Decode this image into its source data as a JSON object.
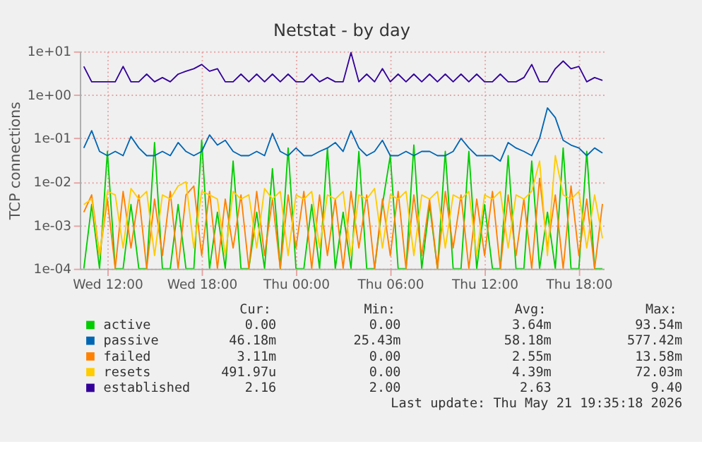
{
  "chart_data": {
    "type": "line",
    "title": "Netstat - by day",
    "ylabel": "TCP connections",
    "log": true,
    "grid": true,
    "legend": "bottom left",
    "line_style": "solid",
    "marker": "none",
    "xlim": [
      "2026-05-20T10:15",
      "2026-05-21T19:35"
    ],
    "xticks": [
      {
        "value": "2026-05-20T12:00",
        "label": "Wed 12:00"
      },
      {
        "value": "2026-05-20T18:00",
        "label": "Wed 18:00"
      },
      {
        "value": "2026-05-21T00:00",
        "label": "Thu 00:00"
      },
      {
        "value": "2026-05-21T06:00",
        "label": "Thu 06:00"
      },
      {
        "value": "2026-05-21T12:00",
        "label": "Thu 12:00"
      },
      {
        "value": "2026-05-21T18:00",
        "label": "Thu 18:00"
      }
    ],
    "ylim": [
      0.0001,
      10
    ],
    "yticks": [
      {
        "value": 0.0001,
        "label": "1e-04"
      },
      {
        "value": 0.001,
        "label": "1e-03"
      },
      {
        "value": 0.01,
        "label": "1e-02"
      },
      {
        "value": 0.1,
        "label": "1e-01"
      },
      {
        "value": 1,
        "label": "1e+00"
      },
      {
        "value": 10,
        "label": "1e+01"
      }
    ],
    "x": [
      "2026-05-20T10:30",
      "2026-05-20T11:00",
      "2026-05-20T11:30",
      "2026-05-20T12:00",
      "2026-05-20T12:30",
      "2026-05-20T13:00",
      "2026-05-20T13:30",
      "2026-05-20T14:00",
      "2026-05-20T14:30",
      "2026-05-20T15:00",
      "2026-05-20T15:30",
      "2026-05-20T16:00",
      "2026-05-20T16:30",
      "2026-05-20T17:00",
      "2026-05-20T17:30",
      "2026-05-20T18:00",
      "2026-05-20T18:30",
      "2026-05-20T19:00",
      "2026-05-20T19:30",
      "2026-05-20T20:00",
      "2026-05-20T20:30",
      "2026-05-20T21:00",
      "2026-05-20T21:30",
      "2026-05-20T22:00",
      "2026-05-20T22:30",
      "2026-05-20T23:00",
      "2026-05-20T23:30",
      "2026-05-21T00:00",
      "2026-05-21T00:30",
      "2026-05-21T01:00",
      "2026-05-21T01:30",
      "2026-05-21T02:00",
      "2026-05-21T02:30",
      "2026-05-21T03:00",
      "2026-05-21T03:30",
      "2026-05-21T04:00",
      "2026-05-21T04:30",
      "2026-05-21T05:00",
      "2026-05-21T05:30",
      "2026-05-21T06:00",
      "2026-05-21T06:30",
      "2026-05-21T07:00",
      "2026-05-21T07:30",
      "2026-05-21T08:00",
      "2026-05-21T08:30",
      "2026-05-21T09:00",
      "2026-05-21T09:30",
      "2026-05-21T10:00",
      "2026-05-21T10:30",
      "2026-05-21T11:00",
      "2026-05-21T11:30",
      "2026-05-21T12:00",
      "2026-05-21T12:30",
      "2026-05-21T13:00",
      "2026-05-21T13:30",
      "2026-05-21T14:00",
      "2026-05-21T14:30",
      "2026-05-21T15:00",
      "2026-05-21T15:30",
      "2026-05-21T16:00",
      "2026-05-21T16:30",
      "2026-05-21T17:00",
      "2026-05-21T17:30",
      "2026-05-21T18:00",
      "2026-05-21T18:30",
      "2026-05-21T19:00",
      "2026-05-21T19:30"
    ],
    "series": [
      {
        "name": "active",
        "color": "#00cc00",
        "values": [
          0.0001,
          0.003,
          0.0001,
          0.05,
          0.0001,
          0.0001,
          0.003,
          0.0001,
          0.0001,
          0.08,
          0.0001,
          0.0001,
          0.003,
          0.0001,
          0.0001,
          0.09,
          0.0001,
          0.002,
          0.0001,
          0.03,
          0.0001,
          0.0001,
          0.002,
          0.0001,
          0.02,
          0.0001,
          0.06,
          0.0001,
          0.0001,
          0.003,
          0.0001,
          0.06,
          0.0001,
          0.002,
          0.0001,
          0.05,
          0.0001,
          0.0001,
          0.003,
          0.04,
          0.0001,
          0.0001,
          0.07,
          0.0001,
          0.003,
          0.0001,
          0.05,
          0.0001,
          0.0001,
          0.05,
          0.0001,
          0.003,
          0.0001,
          0.0001,
          0.04,
          0.0001,
          0.0001,
          0.03,
          0.0001,
          0.002,
          0.0001,
          0.06,
          0.0001,
          0.0001,
          0.05,
          0.0001,
          0.0001
        ]
      },
      {
        "name": "passive",
        "color": "#0066b3",
        "values": [
          0.06,
          0.15,
          0.05,
          0.04,
          0.05,
          0.04,
          0.11,
          0.06,
          0.04,
          0.04,
          0.05,
          0.04,
          0.08,
          0.05,
          0.04,
          0.05,
          0.12,
          0.07,
          0.09,
          0.05,
          0.04,
          0.04,
          0.05,
          0.04,
          0.13,
          0.05,
          0.04,
          0.06,
          0.04,
          0.04,
          0.05,
          0.06,
          0.08,
          0.05,
          0.15,
          0.06,
          0.04,
          0.05,
          0.09,
          0.04,
          0.04,
          0.05,
          0.04,
          0.05,
          0.05,
          0.04,
          0.04,
          0.05,
          0.1,
          0.06,
          0.04,
          0.04,
          0.04,
          0.03,
          0.08,
          0.06,
          0.05,
          0.04,
          0.1,
          0.5,
          0.3,
          0.09,
          0.07,
          0.06,
          0.04,
          0.06,
          0.046
        ]
      },
      {
        "name": "failed",
        "color": "#ff8000",
        "values": [
          0.002,
          0.005,
          0.0002,
          0.004,
          0.0001,
          0.006,
          0.0003,
          0.005,
          0.0001,
          0.004,
          0.0002,
          0.006,
          0.0001,
          0.005,
          0.008,
          0.0002,
          0.006,
          0.0001,
          0.004,
          0.0003,
          0.005,
          0.0001,
          0.006,
          0.0002,
          0.004,
          0.0001,
          0.005,
          0.0003,
          0.006,
          0.0001,
          0.005,
          0.0002,
          0.004,
          0.0001,
          0.006,
          0.0003,
          0.005,
          0.0001,
          0.004,
          0.0002,
          0.006,
          0.0001,
          0.005,
          0.0002,
          0.004,
          0.0001,
          0.006,
          0.0003,
          0.005,
          0.0001,
          0.004,
          0.0002,
          0.006,
          0.0001,
          0.005,
          0.0002,
          0.004,
          0.0001,
          0.012,
          0.0003,
          0.005,
          0.0001,
          0.008,
          0.0002,
          0.004,
          0.0001,
          0.0031
        ]
      },
      {
        "name": "resets",
        "color": "#ffcc00",
        "values": [
          0.003,
          0.004,
          0.0002,
          0.006,
          0.005,
          0.0003,
          0.007,
          0.004,
          0.006,
          0.0002,
          0.005,
          0.004,
          0.008,
          0.01,
          0.0003,
          0.006,
          0.005,
          0.004,
          0.0002,
          0.006,
          0.004,
          0.005,
          0.0003,
          0.007,
          0.004,
          0.006,
          0.0002,
          0.005,
          0.004,
          0.006,
          0.0003,
          0.005,
          0.004,
          0.006,
          0.0002,
          0.005,
          0.004,
          0.007,
          0.0003,
          0.005,
          0.004,
          0.006,
          0.0002,
          0.005,
          0.004,
          0.006,
          0.0003,
          0.005,
          0.004,
          0.006,
          0.0002,
          0.005,
          0.004,
          0.006,
          0.0003,
          0.005,
          0.004,
          0.006,
          0.03,
          0.0002,
          0.04,
          0.005,
          0.004,
          0.006,
          0.0003,
          0.005,
          0.0005
        ]
      },
      {
        "name": "established",
        "color": "#330099",
        "values": [
          4.5,
          2,
          2,
          2,
          2,
          4.5,
          2,
          2,
          3,
          2,
          2.5,
          2,
          3,
          3.5,
          4,
          5,
          3.5,
          4,
          2,
          2,
          3,
          2,
          3,
          2,
          3,
          2,
          3,
          2,
          2,
          3,
          2,
          2.5,
          2,
          2,
          9.4,
          2,
          3,
          2,
          4,
          2,
          3,
          2,
          3,
          2,
          3,
          2,
          3,
          2,
          3,
          2,
          3,
          2,
          2,
          3,
          2,
          2,
          2.5,
          5,
          2,
          2,
          4,
          6,
          4,
          4.5,
          2,
          2.5,
          2.16
        ]
      }
    ],
    "annotations": [
      "Cur:",
      "Min:",
      "Avg:",
      "Max:",
      "0.00",
      "0.00",
      "3.64m",
      "93.54m",
      "46.18m",
      "25.43m",
      "58.18m",
      "577.42m",
      "3.11m",
      "0.00",
      "2.55m",
      "13.58m",
      "491.97u",
      "0.00",
      "4.39m",
      "72.03m",
      "2.16",
      "2.00",
      "2.63",
      "9.40",
      "Last update: Thu May 21 19:35:18 2026"
    ]
  }
}
